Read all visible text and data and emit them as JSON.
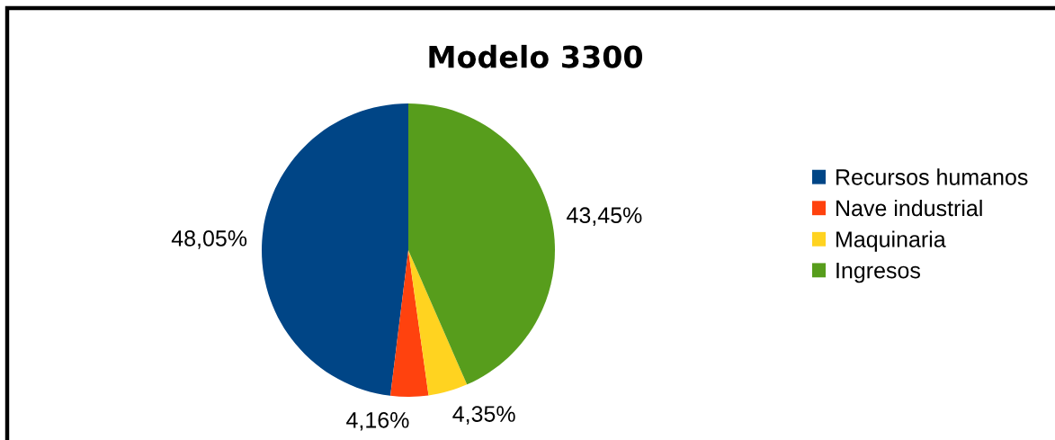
{
  "chart_data": {
    "type": "pie",
    "title": "Modelo 3300",
    "categories": [
      "Recursos humanos",
      "Nave industrial",
      "Maquinaria",
      "Ingresos"
    ],
    "values": [
      48.05,
      4.16,
      4.35,
      43.45
    ],
    "colors": [
      "#004586",
      "#ff420e",
      "#ffd320",
      "#579d1c"
    ],
    "value_labels": [
      "48,05%",
      "4,16%",
      "4,35%",
      "43,45%"
    ],
    "legend": "right"
  }
}
